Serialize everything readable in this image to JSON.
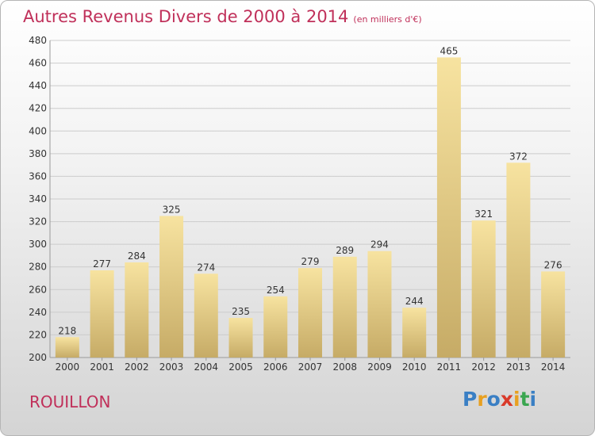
{
  "title": "Autres Revenus Divers de 2000 à 2014",
  "subtitle": "(en milliers d'€)",
  "place": "ROUILLON",
  "logo": {
    "letters": [
      "P",
      "r",
      "o",
      "x",
      "i",
      "t",
      "i"
    ],
    "colors": [
      "#3a7fc4",
      "#e8a020",
      "#3a7fc4",
      "#d93a2a",
      "#e8a020",
      "#3aa650",
      "#3a7fc4"
    ]
  },
  "colors": {
    "title": "#c0305a",
    "bar_light": "#f7e3a0",
    "bar_dark": "#c6ab66",
    "grid": "#cccccc"
  },
  "chart_data": {
    "type": "bar",
    "title": "Autres Revenus Divers de 2000 à 2014",
    "subtitle": "(en milliers d'€)",
    "categories": [
      "2000",
      "2001",
      "2002",
      "2003",
      "2004",
      "2005",
      "2006",
      "2007",
      "2008",
      "2009",
      "2010",
      "2011",
      "2012",
      "2013",
      "2014"
    ],
    "values": [
      218,
      277,
      284,
      325,
      274,
      235,
      254,
      279,
      289,
      294,
      244,
      465,
      321,
      372,
      276
    ],
    "ylim": [
      200,
      480
    ],
    "yticks": [
      200,
      220,
      240,
      260,
      280,
      300,
      320,
      340,
      360,
      380,
      400,
      420,
      440,
      460,
      480
    ],
    "grid": true,
    "xlabel": "",
    "ylabel": ""
  }
}
